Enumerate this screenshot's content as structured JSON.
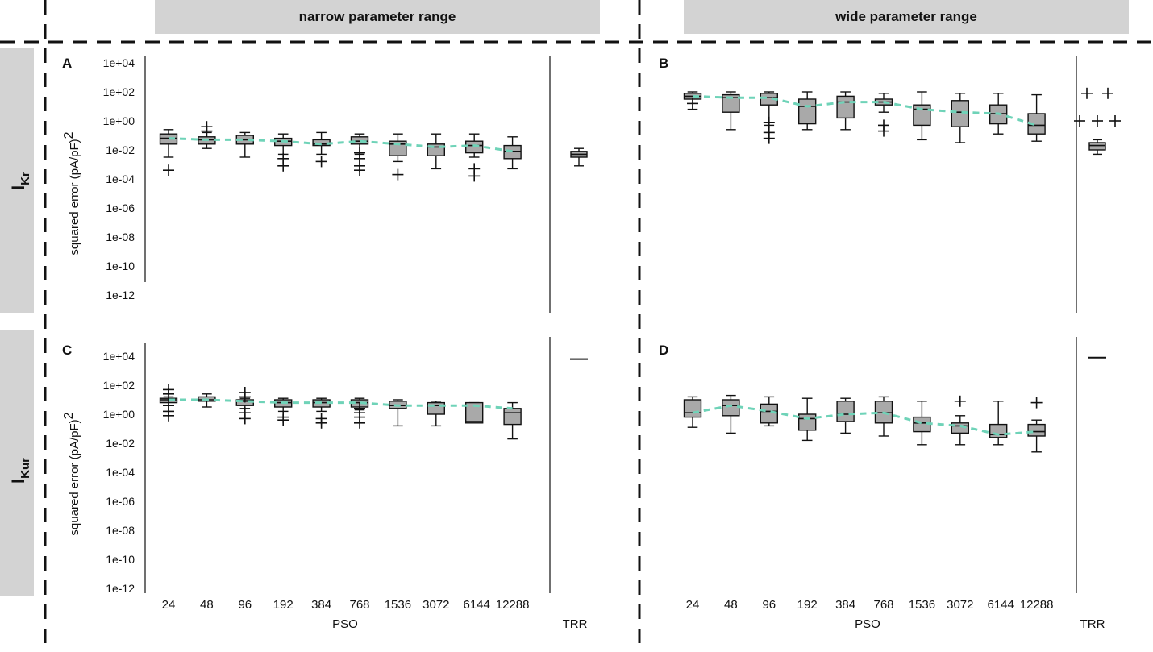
{
  "headers": {
    "left": "narrow parameter range",
    "right": "wide parameter range"
  },
  "rows": [
    {
      "label_main": "I",
      "label_sub": "Kr"
    },
    {
      "label_main": "I",
      "label_sub": "Kur"
    }
  ],
  "y_axis": {
    "label": "squared error (pA/pF)",
    "label_superscript": "2",
    "ticks": [
      "1e+04",
      "1e+02",
      "1e+00",
      "1e-02",
      "1e-04",
      "1e-06",
      "1e-08",
      "1e-10",
      "1e-12"
    ]
  },
  "x_axis": {
    "ticks": [
      "24",
      "48",
      "96",
      "192",
      "384",
      "768",
      "1536",
      "3072",
      "6144",
      "12288"
    ],
    "group_label": "PSO",
    "trr_label": "TRR"
  },
  "colors": {
    "box_fill": "#a9a9a9",
    "trend_line": "#6fd3b8",
    "header_fill": "#d3d3d3",
    "row_label_fill": "#d3d3d3"
  },
  "chart_data": [
    {
      "panel": "A",
      "type": "box",
      "yscale": "log10",
      "ylim_exp": [
        -12,
        4
      ],
      "categories": [
        "24",
        "48",
        "96",
        "192",
        "384",
        "768",
        "1536",
        "3072",
        "6144",
        "12288"
      ],
      "boxes": [
        {
          "wl": -2.5,
          "q1": -1.6,
          "med": -1.2,
          "q3": -0.9,
          "wh": -0.6,
          "outliers": [
            -3.4
          ]
        },
        {
          "wl": -1.9,
          "q1": -1.6,
          "med": -1.3,
          "q3": -1.1,
          "wh": -0.8,
          "outliers": [
            -0.4,
            -0.7
          ]
        },
        {
          "wl": -2.5,
          "q1": -1.6,
          "med": -1.3,
          "q3": -1.0,
          "wh": -0.8,
          "outliers": []
        },
        {
          "wl": -2.3,
          "q1": -1.7,
          "med": -1.4,
          "q3": -1.2,
          "wh": -0.9,
          "outliers": [
            -2.6,
            -3.1
          ]
        },
        {
          "wl": -2.3,
          "q1": -1.7,
          "med": -1.6,
          "q3": -1.3,
          "wh": -0.8,
          "outliers": [
            -2.8
          ]
        },
        {
          "wl": -2.3,
          "q1": -1.6,
          "med": -1.4,
          "q3": -1.1,
          "wh": -0.9,
          "outliers": [
            -2.6,
            -3.1,
            -3.4,
            -2.2
          ]
        },
        {
          "wl": -2.8,
          "q1": -2.4,
          "med": -1.6,
          "q3": -1.4,
          "wh": -0.9,
          "outliers": [
            -3.7
          ]
        },
        {
          "wl": -3.3,
          "q1": -2.4,
          "med": -1.8,
          "q3": -1.6,
          "wh": -0.9,
          "outliers": []
        },
        {
          "wl": -2.5,
          "q1": -2.2,
          "med": -1.7,
          "q3": -1.4,
          "wh": -0.9,
          "outliers": [
            -3.3,
            -3.8
          ]
        },
        {
          "wl": -3.3,
          "q1": -2.6,
          "med": -2.1,
          "q3": -1.7,
          "wh": -1.1,
          "outliers": []
        }
      ],
      "trend": [
        -1.2,
        -1.3,
        -1.3,
        -1.4,
        -1.6,
        -1.4,
        -1.6,
        -1.8,
        -1.7,
        -2.1
      ],
      "trr": {
        "wl": -3.1,
        "q1": -2.5,
        "med": -2.3,
        "q3": -2.1,
        "wh": -1.9,
        "outliers": []
      }
    },
    {
      "panel": "B",
      "type": "box",
      "yscale": "log10",
      "ylim_exp": [
        -12,
        4
      ],
      "categories": [
        "24",
        "48",
        "96",
        "192",
        "384",
        "768",
        "1536",
        "3072",
        "6144",
        "12288"
      ],
      "boxes": [
        {
          "wl": 0.8,
          "q1": 1.5,
          "med": 1.7,
          "q3": 1.9,
          "wh": 2.0,
          "outliers": [
            1.2
          ]
        },
        {
          "wl": -0.6,
          "q1": 0.6,
          "med": 1.6,
          "q3": 1.8,
          "wh": 2.0,
          "outliers": []
        },
        {
          "wl": -0.3,
          "q1": 1.1,
          "med": 1.6,
          "q3": 1.9,
          "wh": 2.0,
          "outliers": [
            -0.1,
            -0.8,
            -1.2
          ]
        },
        {
          "wl": -0.6,
          "q1": -0.2,
          "med": 1.0,
          "q3": 1.5,
          "wh": 2.0,
          "outliers": []
        },
        {
          "wl": -0.6,
          "q1": 0.2,
          "med": 1.3,
          "q3": 1.7,
          "wh": 2.0,
          "outliers": []
        },
        {
          "wl": 0.6,
          "q1": 1.1,
          "med": 1.3,
          "q3": 1.5,
          "wh": 1.9,
          "outliers": [
            -0.3,
            -0.7
          ]
        },
        {
          "wl": -1.3,
          "q1": -0.3,
          "med": 0.8,
          "q3": 1.1,
          "wh": 2.0,
          "outliers": []
        },
        {
          "wl": -1.5,
          "q1": -0.4,
          "med": 0.6,
          "q3": 1.4,
          "wh": 1.9,
          "outliers": []
        },
        {
          "wl": -0.9,
          "q1": -0.2,
          "med": 0.5,
          "q3": 1.1,
          "wh": 1.9,
          "outliers": []
        },
        {
          "wl": -1.4,
          "q1": -0.9,
          "med": -0.3,
          "q3": 0.5,
          "wh": 1.8,
          "outliers": []
        }
      ],
      "trend": [
        1.7,
        1.6,
        1.6,
        1.0,
        1.3,
        1.3,
        0.8,
        0.6,
        0.5,
        -0.3
      ],
      "trr": {
        "wl": -2.3,
        "q1": -2.0,
        "med": -1.7,
        "q3": -1.5,
        "wh": -1.3,
        "outliers": [
          1.9,
          1.9,
          0.0,
          0.0,
          0.0
        ]
      }
    },
    {
      "panel": "C",
      "type": "box",
      "yscale": "log10",
      "ylim_exp": [
        -12,
        4
      ],
      "categories": [
        "24",
        "48",
        "96",
        "192",
        "384",
        "768",
        "1536",
        "3072",
        "6144",
        "12288"
      ],
      "boxes": [
        {
          "wl": 0.6,
          "q1": 0.8,
          "med": 1.0,
          "q3": 1.1,
          "wh": 1.2,
          "outliers": [
            1.7,
            1.4,
            0.6,
            0.2,
            -0.1
          ]
        },
        {
          "wl": 0.5,
          "q1": 0.9,
          "med": 1.0,
          "q3": 1.2,
          "wh": 1.4,
          "outliers": []
        },
        {
          "wl": 0.4,
          "q1": 0.6,
          "med": 0.9,
          "q3": 1.0,
          "wh": 1.1,
          "outliers": [
            1.5,
            1.2,
            0.1,
            -0.3
          ]
        },
        {
          "wl": 0.2,
          "q1": 0.5,
          "med": 0.8,
          "q3": 1.0,
          "wh": 1.1,
          "outliers": [
            -0.2,
            -0.4
          ]
        },
        {
          "wl": 0.2,
          "q1": 0.5,
          "med": 0.8,
          "q3": 1.0,
          "wh": 1.1,
          "outliers": [
            -0.3,
            -0.6
          ]
        },
        {
          "wl": 0.3,
          "q1": 0.5,
          "med": 0.8,
          "q3": 1.0,
          "wh": 1.1,
          "outliers": [
            0.4,
            0.1,
            -0.2,
            -0.6
          ]
        },
        {
          "wl": -0.8,
          "q1": 0.4,
          "med": 0.6,
          "q3": 0.9,
          "wh": 1.0,
          "outliers": []
        },
        {
          "wl": -0.8,
          "q1": 0.0,
          "med": 0.6,
          "q3": 0.8,
          "wh": 0.9,
          "outliers": []
        },
        {
          "wl": -0.6,
          "q1": -0.6,
          "med": -0.5,
          "q3": 0.8,
          "wh": 0.8,
          "outliers": []
        },
        {
          "wl": -1.7,
          "q1": -0.7,
          "med": 0.1,
          "q3": 0.4,
          "wh": 0.8,
          "outliers": []
        }
      ],
      "trend": [
        1.0,
        1.0,
        0.9,
        0.8,
        0.8,
        0.8,
        0.6,
        0.6,
        0.6,
        0.4
      ],
      "trr": {
        "wl": 3.8,
        "q1": 3.8,
        "med": 3.8,
        "q3": 3.8,
        "wh": 3.8,
        "outliers": []
      }
    },
    {
      "panel": "D",
      "type": "box",
      "yscale": "log10",
      "ylim_exp": [
        -12,
        4
      ],
      "categories": [
        "24",
        "48",
        "96",
        "192",
        "384",
        "768",
        "1536",
        "3072",
        "6144",
        "12288"
      ],
      "boxes": [
        {
          "wl": -0.9,
          "q1": -0.2,
          "med": 0.1,
          "q3": 1.0,
          "wh": 1.2,
          "outliers": []
        },
        {
          "wl": -1.3,
          "q1": -0.1,
          "med": 0.6,
          "q3": 1.0,
          "wh": 1.3,
          "outliers": []
        },
        {
          "wl": -0.8,
          "q1": -0.6,
          "med": 0.2,
          "q3": 0.7,
          "wh": 1.2,
          "outliers": []
        },
        {
          "wl": -1.8,
          "q1": -1.1,
          "med": -0.3,
          "q3": 0.0,
          "wh": 1.1,
          "outliers": []
        },
        {
          "wl": -1.3,
          "q1": -0.5,
          "med": 0.0,
          "q3": 0.9,
          "wh": 1.1,
          "outliers": []
        },
        {
          "wl": -1.5,
          "q1": -0.6,
          "med": 0.1,
          "q3": 0.9,
          "wh": 1.2,
          "outliers": []
        },
        {
          "wl": -2.1,
          "q1": -1.2,
          "med": -0.6,
          "q3": -0.2,
          "wh": 0.9,
          "outliers": []
        },
        {
          "wl": -2.1,
          "q1": -1.3,
          "med": -0.8,
          "q3": -0.6,
          "wh": -0.1,
          "outliers": [
            0.9
          ]
        },
        {
          "wl": -2.1,
          "q1": -1.6,
          "med": -1.4,
          "q3": -0.7,
          "wh": 0.9,
          "outliers": []
        },
        {
          "wl": -2.6,
          "q1": -1.5,
          "med": -1.2,
          "q3": -0.7,
          "wh": -0.4,
          "outliers": [
            0.8
          ]
        }
      ],
      "trend": [
        0.1,
        0.6,
        0.2,
        -0.3,
        0.0,
        0.1,
        -0.6,
        -0.8,
        -1.4,
        -1.2
      ],
      "trr": {
        "wl": 3.9,
        "q1": 3.9,
        "med": 3.9,
        "q3": 3.9,
        "wh": 3.9,
        "outliers": []
      }
    }
  ]
}
